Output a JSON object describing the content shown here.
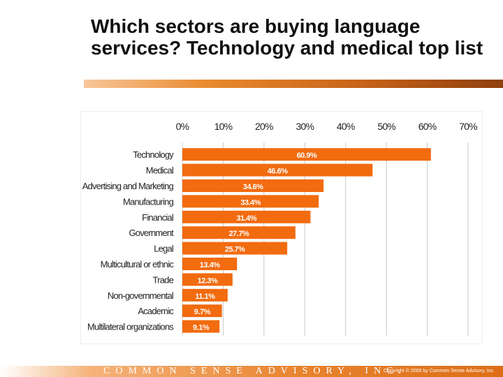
{
  "slide": {
    "title": "Which sectors are buying language services? Technology and medical top list"
  },
  "footer": {
    "brand": "COMMON SENSE ADVISORY, INC.",
    "copyright": "Copyright © 2006 by Common Sense Advisory, Inc."
  },
  "colors": {
    "bar": "#f26b0f",
    "bar_label": "#ffffff",
    "grid": "#c8c8c8",
    "text": "#222222"
  },
  "chart_data": {
    "type": "bar",
    "orientation": "horizontal",
    "title": "",
    "xlabel": "",
    "ylabel": "",
    "xlim": [
      0,
      70
    ],
    "x_ticks": [
      "0%",
      "10%",
      "20%",
      "30%",
      "40%",
      "50%",
      "60%",
      "70%"
    ],
    "x_tick_values": [
      0,
      10,
      20,
      30,
      40,
      50,
      60,
      70
    ],
    "grid": true,
    "legend": "none",
    "categories": [
      "Technology",
      "Medical",
      "Advertising and Marketing",
      "Manufacturing",
      "Financial",
      "Government",
      "Legal",
      "Multicultural or ethnic",
      "Trade",
      "Non-governmental",
      "Academic",
      "Multilateral organizations"
    ],
    "values": [
      60.9,
      46.6,
      34.6,
      33.4,
      31.4,
      27.7,
      25.7,
      13.4,
      12.3,
      11.1,
      9.7,
      9.1
    ],
    "value_labels": [
      "60.9%",
      "46.6%",
      "34.6%",
      "33.4%",
      "31.4%",
      "27.7%",
      "25.7%",
      "13.4%",
      "12.3%",
      "11.1%",
      "9.7%",
      "9.1%"
    ]
  }
}
